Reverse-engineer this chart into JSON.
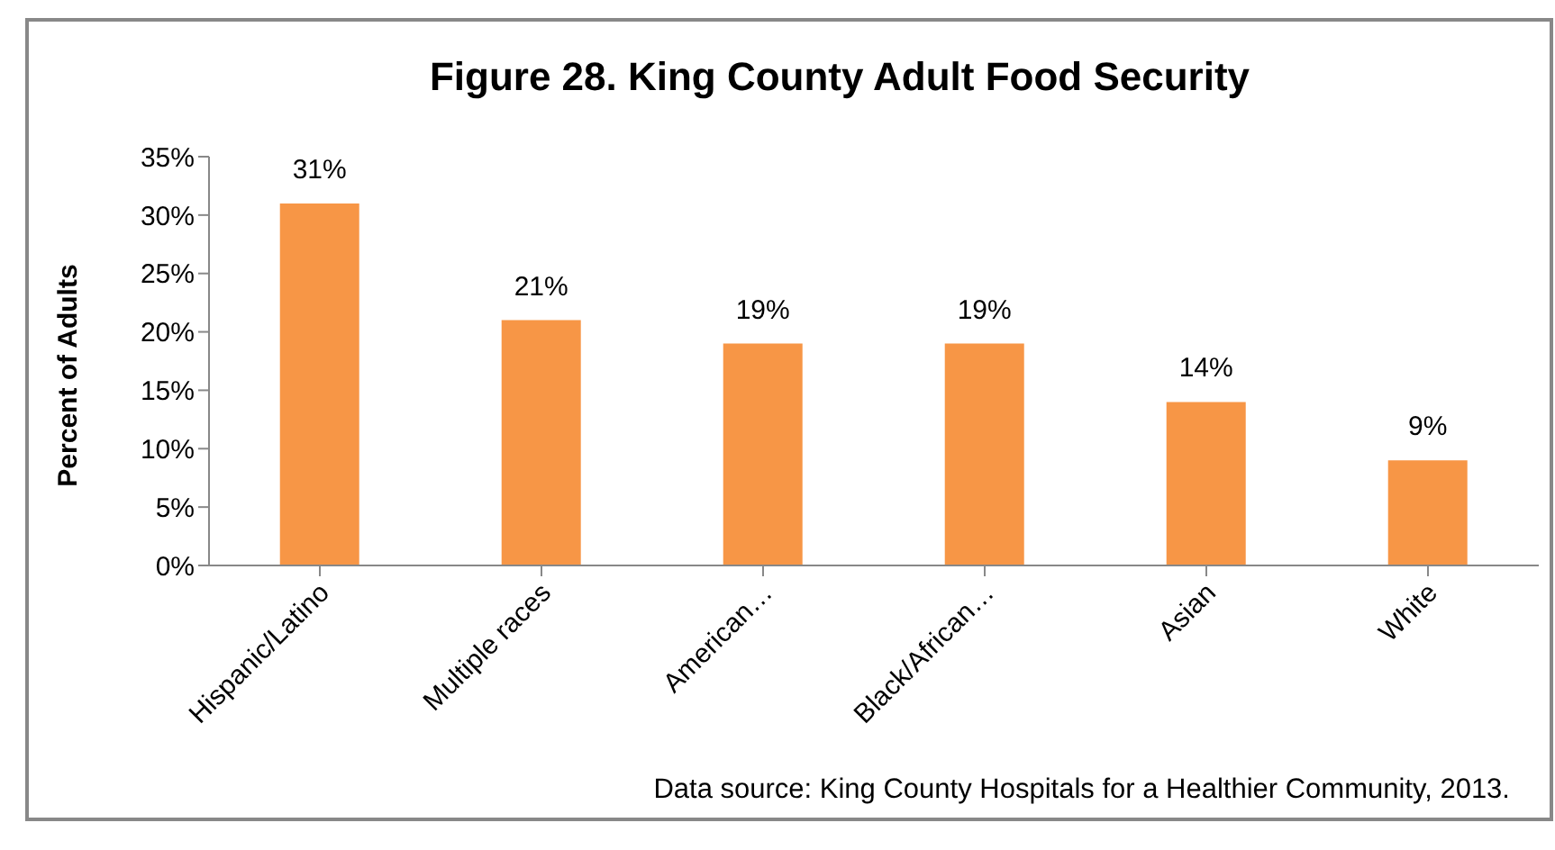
{
  "chart_data": {
    "type": "bar",
    "title": "Figure 28. King County Adult Food Security",
    "ylabel": "Percent of Adults",
    "categories": [
      "Hispanic/Latino",
      "Multiple races",
      "American…",
      "Black/African…",
      "Asian",
      "White"
    ],
    "values": [
      31,
      21,
      19,
      19,
      14,
      9
    ],
    "color": "#f79646",
    "value_labels": [
      "31%",
      "21%",
      "19%",
      "19%",
      "14%",
      "9%"
    ],
    "ylim": [
      0,
      35
    ],
    "yticks": [
      {
        "value": 0,
        "label": "0%"
      },
      {
        "value": 5,
        "label": "5%"
      },
      {
        "value": 10,
        "label": "10%"
      },
      {
        "value": 15,
        "label": "15%"
      },
      {
        "value": 20,
        "label": "20%"
      },
      {
        "value": 25,
        "label": "25%"
      },
      {
        "value": 30,
        "label": "30%"
      },
      {
        "value": 35,
        "label": "35%"
      }
    ],
    "grid": false,
    "annotations": [
      "Data source: King County Hospitals for a Healthier Community, 2013."
    ]
  }
}
